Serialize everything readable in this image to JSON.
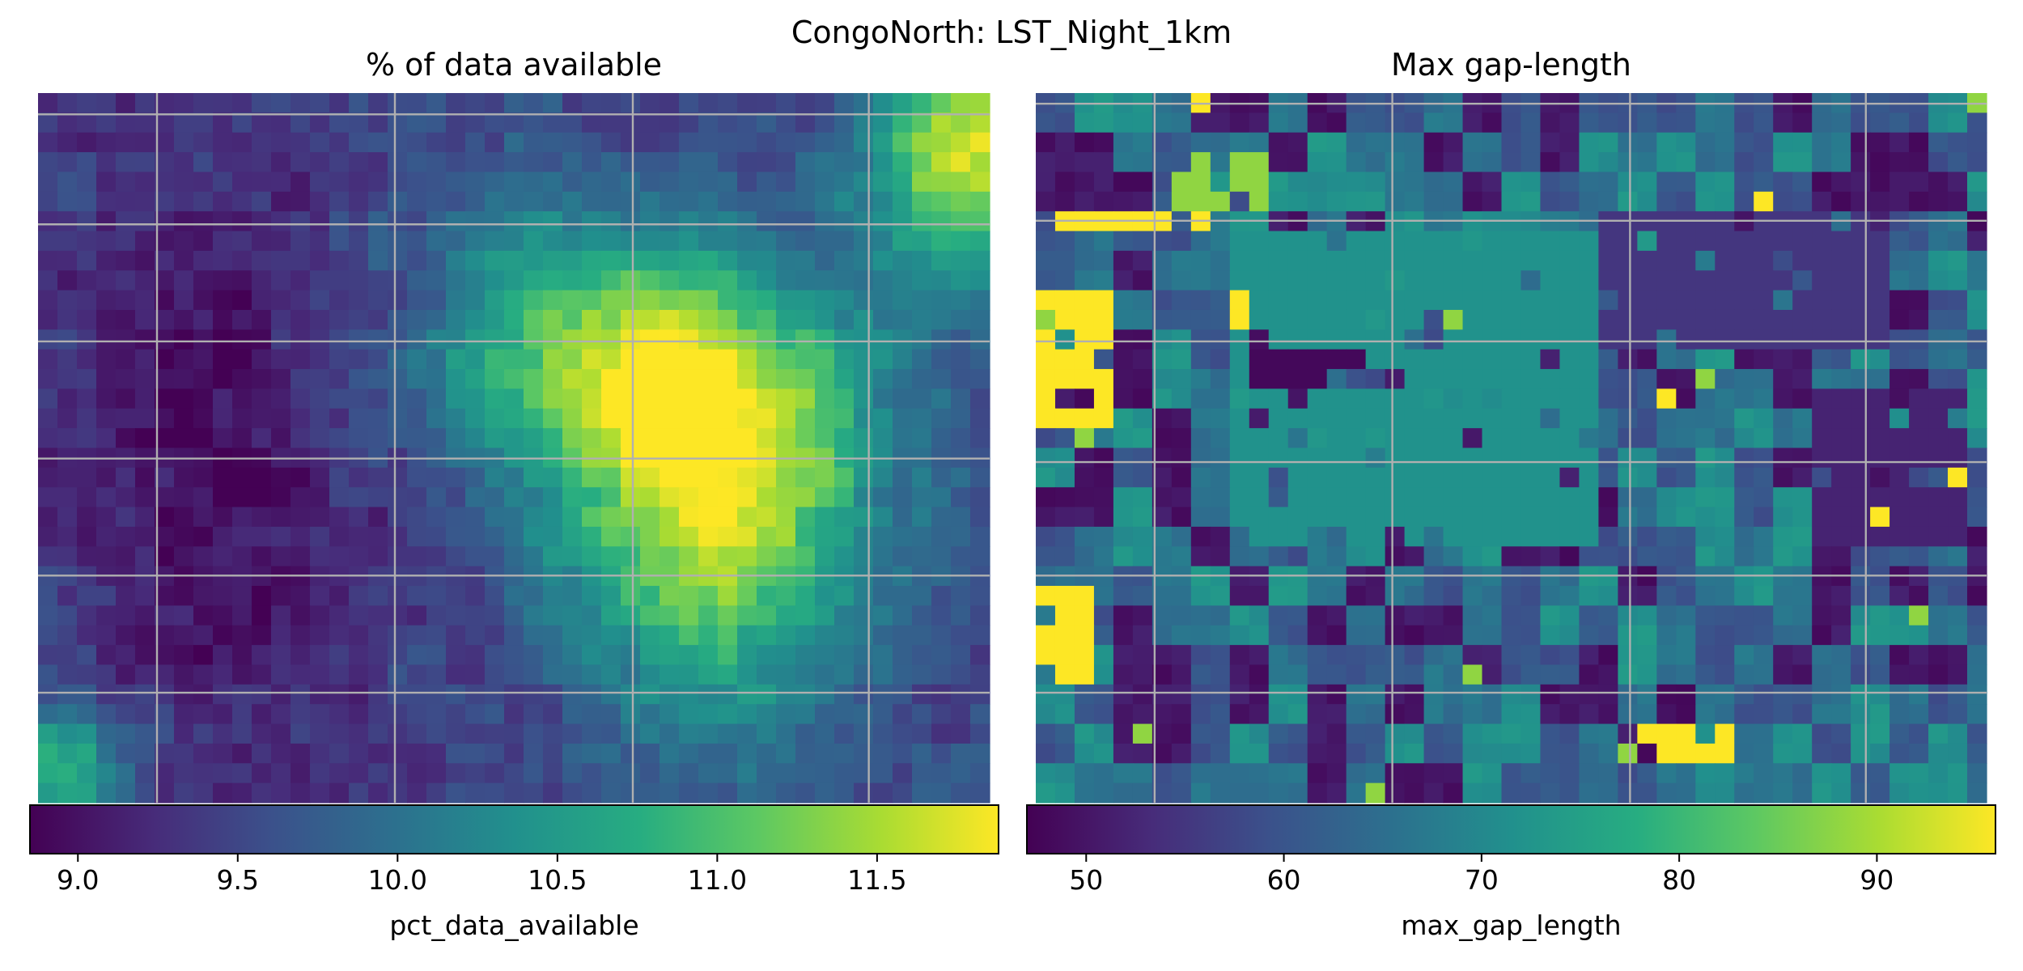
{
  "suptitle": "CongoNorth: LST_Night_1km",
  "chart_data": [
    {
      "type": "heatmap",
      "title": "% of data available",
      "colormap": "viridis",
      "colorbar_label": "pct_data_available",
      "vmin": 8.85,
      "vmax": 11.88,
      "colorbar_ticks": [
        "9.0",
        "9.5",
        "10.0",
        "10.5",
        "11.0",
        "11.5"
      ],
      "colorbar_tick_values": [
        9.0,
        9.5,
        10.0,
        10.5,
        11.0,
        11.5
      ],
      "grid": true,
      "grid_dims": [
        36,
        49
      ],
      "base_value": 9.45,
      "features": [
        {
          "kind": "blob",
          "cx": 0.72,
          "cy": 0.6,
          "sx": 0.12,
          "sy": 0.2,
          "amp": 2.0
        },
        {
          "kind": "blob",
          "cx": 0.62,
          "cy": 0.4,
          "sx": 0.14,
          "sy": 0.11,
          "amp": 1.7
        },
        {
          "kind": "blob",
          "cx": 0.97,
          "cy": 0.08,
          "sx": 0.07,
          "sy": 0.12,
          "amp": 2.3
        },
        {
          "kind": "blob",
          "cx": 0.55,
          "cy": 0.22,
          "sx": 0.1,
          "sy": 0.1,
          "amp": 0.6
        },
        {
          "kind": "blob",
          "cx": 0.02,
          "cy": 0.95,
          "sx": 0.06,
          "sy": 0.06,
          "amp": 1.4
        },
        {
          "kind": "blob",
          "cx": 0.18,
          "cy": 0.55,
          "sx": 0.12,
          "sy": 0.3,
          "amp": -0.5
        }
      ]
    },
    {
      "type": "heatmap",
      "title": "Max gap-length",
      "colormap": "viridis",
      "colorbar_label": "max_gap_length",
      "vmin": 47,
      "vmax": 96,
      "colorbar_ticks": [
        "50",
        "60",
        "70",
        "80",
        "90"
      ],
      "colorbar_tick_values": [
        50,
        60,
        70,
        80,
        90
      ],
      "grid": true,
      "grid_dims": [
        36,
        49
      ],
      "levels": [
        50,
        60,
        66,
        72,
        80,
        88,
        96
      ],
      "features": [
        {
          "kind": "rect",
          "x": 0.2,
          "y": 0.2,
          "w": 0.4,
          "h": 0.45,
          "value": 72
        },
        {
          "kind": "rect",
          "x": 0.0,
          "y": 0.28,
          "w": 0.08,
          "h": 0.18,
          "value": 96
        },
        {
          "kind": "rect",
          "x": 0.02,
          "y": 0.17,
          "w": 0.16,
          "h": 0.03,
          "value": 96
        },
        {
          "kind": "rect",
          "x": 0.14,
          "y": 0.08,
          "w": 0.1,
          "h": 0.1,
          "value": 88
        },
        {
          "kind": "rect",
          "x": 0.0,
          "y": 0.7,
          "w": 0.06,
          "h": 0.12,
          "value": 96
        },
        {
          "kind": "rect",
          "x": 0.63,
          "y": 0.88,
          "w": 0.1,
          "h": 0.06,
          "value": 96
        },
        {
          "kind": "rect",
          "x": 0.6,
          "y": 0.16,
          "w": 0.3,
          "h": 0.2,
          "value": 55
        },
        {
          "kind": "rect",
          "x": 0.82,
          "y": 0.42,
          "w": 0.16,
          "h": 0.22,
          "value": 52
        },
        {
          "kind": "rect",
          "x": 0.22,
          "y": 0.36,
          "w": 0.12,
          "h": 0.05,
          "value": 48
        }
      ]
    }
  ]
}
